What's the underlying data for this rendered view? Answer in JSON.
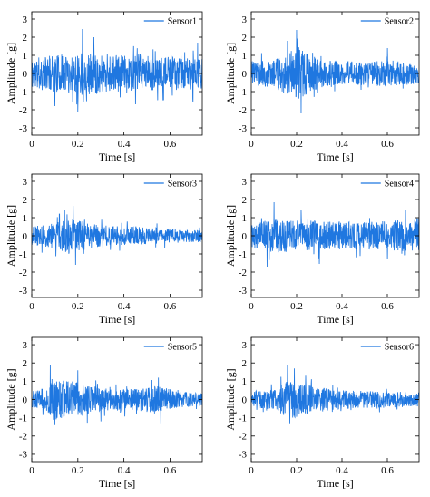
{
  "chart_data": [
    {
      "type": "line",
      "series": [
        {
          "name": "Sensor1",
          "seed": 11,
          "envelope": [
            [
              0,
              0.75
            ],
            [
              0.08,
              0.85
            ],
            [
              0.15,
              0.95
            ],
            [
              0.22,
              1.05
            ],
            [
              0.3,
              0.9
            ],
            [
              0.45,
              0.85
            ],
            [
              0.6,
              0.8
            ],
            [
              0.74,
              0.75
            ]
          ],
          "peaks": [
            [
              0.22,
              2.45
            ],
            [
              0.2,
              -2.1
            ],
            [
              0.1,
              -1.8
            ],
            [
              0.27,
              2.0
            ],
            [
              0.45,
              -1.7
            ],
            [
              0.7,
              -1.6
            ],
            [
              0.72,
              1.7
            ]
          ]
        }
      ],
      "xlabel": "Time [s]",
      "ylabel": "Amplitude [g]",
      "xlim": [
        0,
        0.74
      ],
      "ylim": [
        -3.4,
        3.4
      ],
      "xticks": [
        "0",
        "0.2",
        "0.4",
        "0.6"
      ],
      "yticks": [
        "3",
        "2",
        "1",
        "0",
        "-1",
        "-2",
        "-3"
      ],
      "legend": "top-right",
      "grid": false
    },
    {
      "type": "line",
      "series": [
        {
          "name": "Sensor2",
          "seed": 23,
          "envelope": [
            [
              0,
              0.55
            ],
            [
              0.1,
              0.7
            ],
            [
              0.17,
              1.1
            ],
            [
              0.21,
              1.3
            ],
            [
              0.26,
              0.85
            ],
            [
              0.35,
              0.6
            ],
            [
              0.5,
              0.55
            ],
            [
              0.6,
              0.65
            ],
            [
              0.74,
              0.5
            ]
          ],
          "peaks": [
            [
              0.2,
              -3.15
            ],
            [
              0.2,
              2.4
            ],
            [
              0.22,
              -2.2
            ],
            [
              0.16,
              1.8
            ],
            [
              0.6,
              1.4
            ]
          ]
        }
      ],
      "xlabel": "Time [s]",
      "ylabel": "Amplitude [g]",
      "xlim": [
        0,
        0.74
      ],
      "ylim": [
        -3.4,
        3.4
      ],
      "xticks": [
        "0",
        "0.2",
        "0.4",
        "0.6"
      ],
      "yticks": [
        "3",
        "2",
        "1",
        "0",
        "-1",
        "-2",
        "-3"
      ],
      "legend": "top-right",
      "grid": false
    },
    {
      "type": "line",
      "series": [
        {
          "name": "Sensor3",
          "seed": 37,
          "envelope": [
            [
              0,
              0.45
            ],
            [
              0.1,
              0.6
            ],
            [
              0.17,
              0.9
            ],
            [
              0.22,
              0.7
            ],
            [
              0.3,
              0.5
            ],
            [
              0.5,
              0.4
            ],
            [
              0.74,
              0.3
            ]
          ],
          "peaks": [
            [
              0.18,
              1.65
            ],
            [
              0.19,
              -1.6
            ],
            [
              0.12,
              1.2
            ]
          ]
        }
      ],
      "xlabel": "Time [s]",
      "ylabel": "Amplitude [g]",
      "xlim": [
        0,
        0.74
      ],
      "ylim": [
        -3.4,
        3.4
      ],
      "xticks": [
        "0",
        "0.2",
        "0.4",
        "0.6"
      ],
      "yticks": [
        "3",
        "2",
        "1",
        "0",
        "-1",
        "-2",
        "-3"
      ],
      "legend": "top-right",
      "grid": false
    },
    {
      "type": "line",
      "series": [
        {
          "name": "Sensor4",
          "seed": 41,
          "envelope": [
            [
              0,
              0.6
            ],
            [
              0.1,
              0.8
            ],
            [
              0.2,
              0.75
            ],
            [
              0.35,
              0.7
            ],
            [
              0.5,
              0.65
            ],
            [
              0.65,
              0.75
            ],
            [
              0.74,
              0.7
            ]
          ],
          "peaks": [
            [
              0.1,
              1.85
            ],
            [
              0.07,
              -1.7
            ],
            [
              0.3,
              -1.55
            ],
            [
              0.22,
              1.4
            ],
            [
              0.68,
              1.4
            ],
            [
              0.6,
              -1.3
            ]
          ]
        }
      ],
      "xlabel": "Time [s]",
      "ylabel": "Amplitude [g]",
      "xlim": [
        0,
        0.74
      ],
      "ylim": [
        -3.4,
        3.4
      ],
      "xticks": [
        "0",
        "0.2",
        "0.4",
        "0.6"
      ],
      "yticks": [
        "3",
        "2",
        "1",
        "0",
        "-1",
        "-2",
        "-3"
      ],
      "legend": "top-right",
      "grid": false
    },
    {
      "type": "line",
      "series": [
        {
          "name": "Sensor5",
          "seed": 53,
          "envelope": [
            [
              0,
              0.4
            ],
            [
              0.06,
              0.55
            ],
            [
              0.08,
              1.0
            ],
            [
              0.2,
              0.85
            ],
            [
              0.3,
              0.55
            ],
            [
              0.45,
              0.5
            ],
            [
              0.55,
              0.7
            ],
            [
              0.62,
              0.4
            ],
            [
              0.74,
              0.3
            ]
          ],
          "peaks": [
            [
              0.08,
              1.9
            ],
            [
              0.2,
              1.6
            ],
            [
              0.1,
              -1.4
            ],
            [
              0.3,
              -1.2
            ],
            [
              0.56,
              -1.3
            ],
            [
              0.55,
              1.2
            ]
          ]
        }
      ],
      "xlabel": "Time [s]",
      "ylabel": "Amplitude [g]",
      "xlim": [
        0,
        0.74
      ],
      "ylim": [
        -3.4,
        3.4
      ],
      "xticks": [
        "0",
        "0.2",
        "0.4",
        "0.6"
      ],
      "yticks": [
        "3",
        "2",
        "1",
        "0",
        "-1",
        "-2",
        "-3"
      ],
      "legend": "top-right",
      "grid": false
    },
    {
      "type": "line",
      "series": [
        {
          "name": "Sensor6",
          "seed": 67,
          "envelope": [
            [
              0,
              0.35
            ],
            [
              0.1,
              0.5
            ],
            [
              0.17,
              0.95
            ],
            [
              0.22,
              0.75
            ],
            [
              0.35,
              0.5
            ],
            [
              0.5,
              0.4
            ],
            [
              0.74,
              0.35
            ]
          ],
          "peaks": [
            [
              0.16,
              1.9
            ],
            [
              0.19,
              1.7
            ],
            [
              0.17,
              -1.3
            ],
            [
              0.24,
              1.3
            ]
          ]
        }
      ],
      "xlabel": "Time [s]",
      "ylabel": "Amplitude [g]",
      "xlim": [
        0,
        0.74
      ],
      "ylim": [
        -3.4,
        3.4
      ],
      "xticks": [
        "0",
        "0.2",
        "0.4",
        "0.6"
      ],
      "yticks": [
        "3",
        "2",
        "1",
        "0",
        "-1",
        "-2",
        "-3"
      ],
      "legend": "top-right",
      "grid": false
    }
  ],
  "colors": {
    "line": "#1f77e0",
    "axis": "#000000"
  }
}
